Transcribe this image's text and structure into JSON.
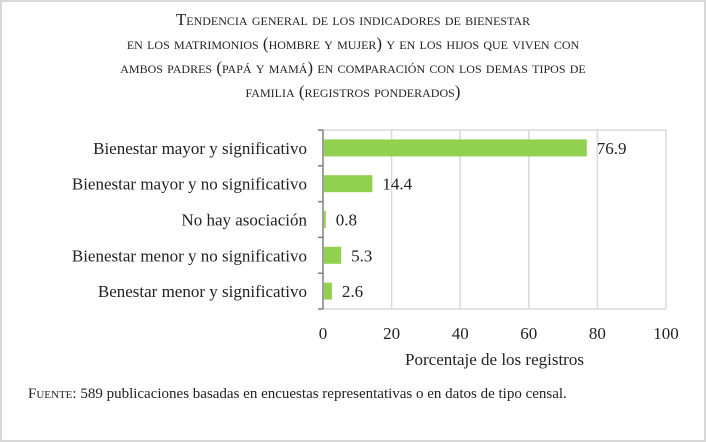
{
  "chart_data": {
    "type": "bar",
    "orientation": "horizontal",
    "title_lines": [
      "Tendencia general de los indicadores de bienestar",
      "en los matrimonios (hombre y mujer) y en los hijos que viven con",
      "ambos padres (papá y mamá) en comparación con los demas tipos de",
      "familia (registros ponderados)"
    ],
    "categories": [
      "Bienestar mayor y significativo",
      "Bienestar mayor y no significativo",
      "No hay asociación",
      "Bienestar menor y no significativo",
      "Benestar menor y significativo"
    ],
    "values": [
      76.9,
      14.4,
      0.8,
      5.3,
      2.6
    ],
    "value_labels": [
      "76.9",
      "14.4",
      "0.8",
      "5.3",
      "2.6"
    ],
    "xlabel": "Porcentaje de los registros",
    "xlim": [
      0,
      100
    ],
    "xticks": [
      "0",
      "20",
      "40",
      "60",
      "80",
      "100"
    ],
    "grid": true,
    "bar_color": "#92d050",
    "grid_color": "#d9d9d9"
  },
  "source": {
    "prefix": "Fuente:",
    "text": " 589 publicaciones basadas en encuestas representativas o en datos de tipo censal."
  }
}
